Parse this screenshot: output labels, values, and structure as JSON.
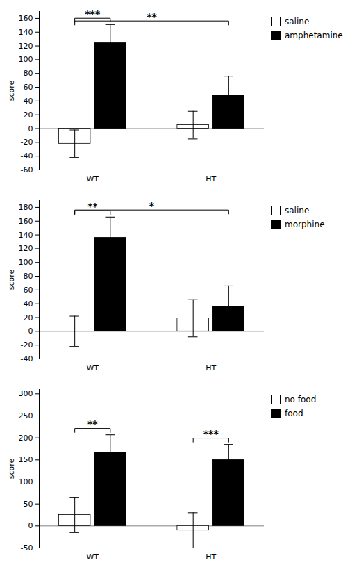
{
  "chart_data": [
    {
      "type": "bar",
      "categories": [
        "WT",
        "HT"
      ],
      "ylabel": "score",
      "ylim": [
        -60,
        170
      ],
      "yticks": [
        -60,
        -40,
        -20,
        0,
        20,
        40,
        60,
        80,
        100,
        120,
        140,
        160
      ],
      "series": [
        {
          "name": "saline",
          "color": "#ffffff",
          "values": [
            -22,
            5
          ],
          "errors": [
            20,
            20
          ]
        },
        {
          "name": "amphetamine",
          "color": "#000000",
          "values": [
            124,
            48
          ],
          "errors": [
            27,
            28
          ]
        }
      ],
      "annotations": [
        {
          "text": "***",
          "from": [
            "WT",
            "saline"
          ],
          "to": [
            "WT",
            "amphetamine"
          ]
        },
        {
          "text": "**",
          "from": [
            "WT",
            "saline"
          ],
          "to": [
            "HT",
            "amphetamine"
          ]
        }
      ],
      "legend": "right"
    },
    {
      "type": "bar",
      "categories": [
        "WT",
        "HT"
      ],
      "ylabel": "score",
      "ylim": [
        -40,
        190
      ],
      "yticks": [
        -40,
        -20,
        0,
        20,
        40,
        60,
        80,
        100,
        120,
        140,
        160,
        180
      ],
      "series": [
        {
          "name": "saline",
          "color": "#ffffff",
          "values": [
            0,
            19
          ],
          "errors": [
            22,
            27
          ]
        },
        {
          "name": "morphine",
          "color": "#000000",
          "values": [
            136,
            36
          ],
          "errors": [
            30,
            30
          ]
        }
      ],
      "annotations": [
        {
          "text": "**",
          "from": [
            "WT",
            "saline"
          ],
          "to": [
            "WT",
            "morphine"
          ]
        },
        {
          "text": "*",
          "from": [
            "WT",
            "saline"
          ],
          "to": [
            "HT",
            "morphine"
          ]
        }
      ],
      "legend": "right"
    },
    {
      "type": "bar",
      "categories": [
        "WT",
        "HT"
      ],
      "ylabel": "score",
      "ylim": [
        -50,
        310
      ],
      "yticks": [
        -50,
        0,
        50,
        100,
        150,
        200,
        250,
        300
      ],
      "series": [
        {
          "name": "no food",
          "color": "#ffffff",
          "values": [
            25,
            -10
          ],
          "errors": [
            40,
            40
          ]
        },
        {
          "name": "food",
          "color": "#000000",
          "values": [
            167,
            150
          ],
          "errors": [
            40,
            35
          ]
        }
      ],
      "annotations": [
        {
          "text": "**",
          "from": [
            "WT",
            "no food"
          ],
          "to": [
            "WT",
            "food"
          ]
        },
        {
          "text": "***",
          "from": [
            "HT",
            "no food"
          ],
          "to": [
            "HT",
            "food"
          ]
        }
      ],
      "legend": "right"
    }
  ]
}
